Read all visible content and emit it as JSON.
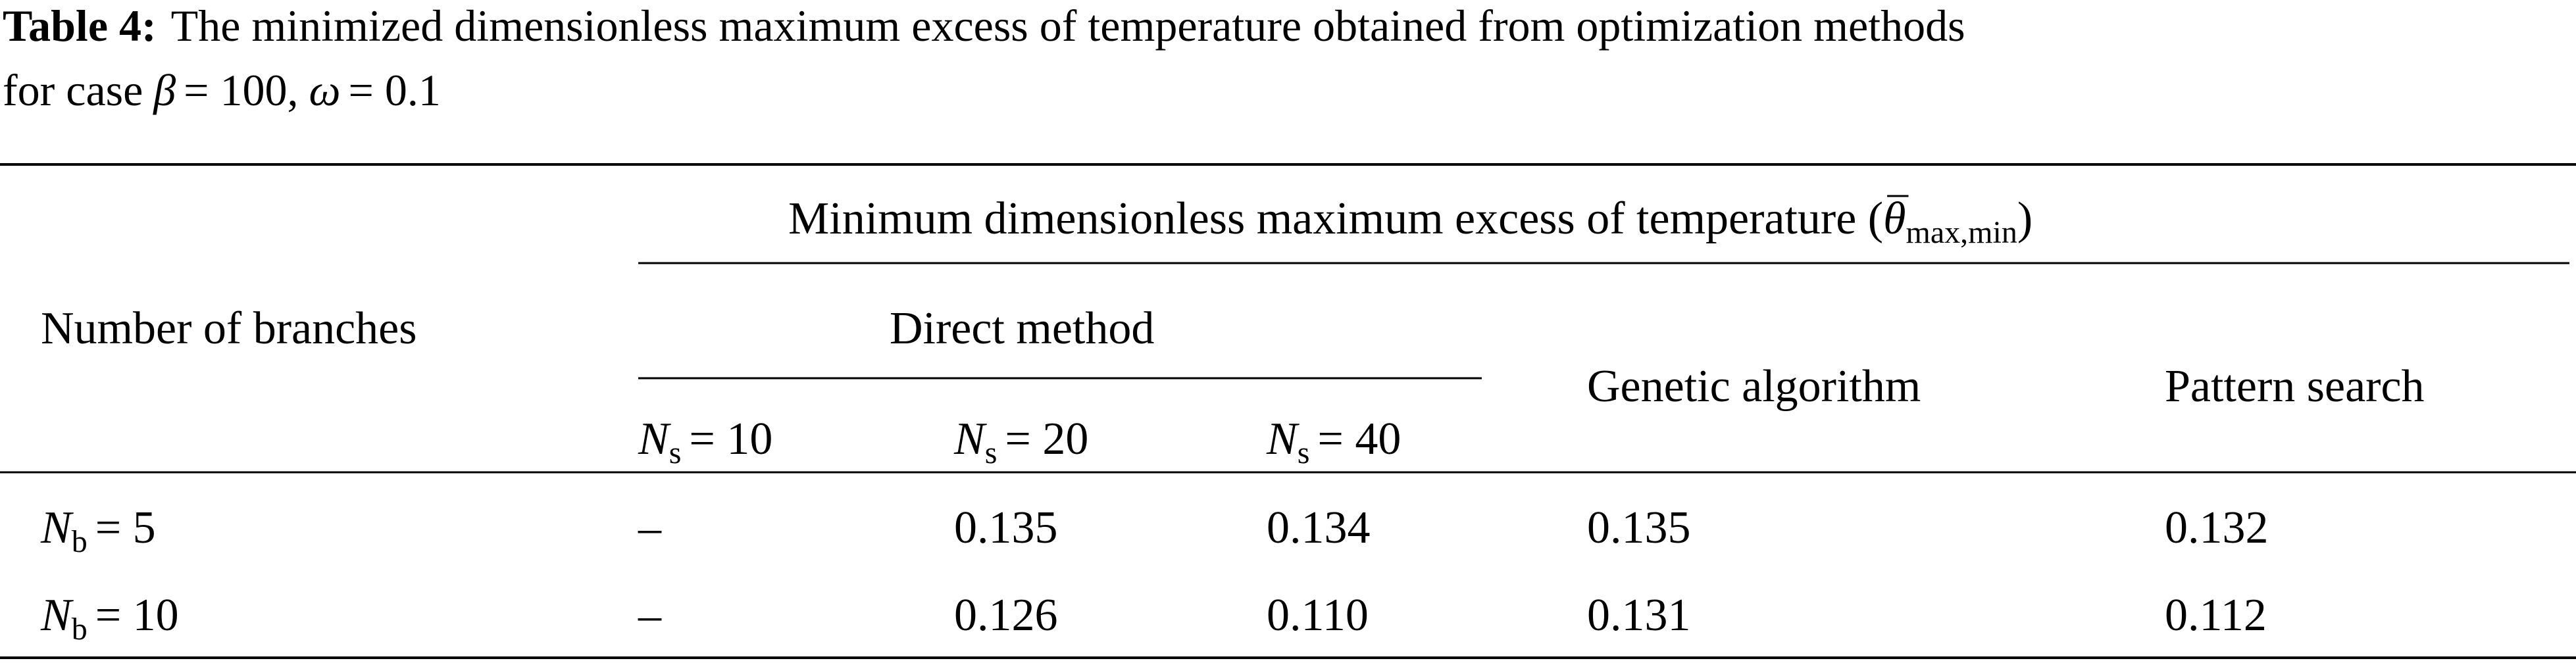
{
  "caption": {
    "label": "Table 4:",
    "line1": "The minimized dimensionless maximum excess of temperature obtained from optimization methods",
    "line2": "for case",
    "beta": {
      "symbol": "β",
      "value": "= 100,"
    },
    "omega": {
      "symbol": "ω",
      "value": "= 0.1"
    }
  },
  "table": {
    "header": {
      "span": {
        "text": "Minimum dimensionless maximum excess of temperature (",
        "symbol": "θ",
        "sub": "max,min",
        "close": ")"
      },
      "first": "Number of branches",
      "direct": "Direct method",
      "genetic": "Genetic algorithm",
      "pattern": "Pattern search",
      "ns": [
        {
          "symbol": "N",
          "sub": "s",
          "value": "= 10"
        },
        {
          "symbol": "N",
          "sub": "s",
          "value": "= 20"
        },
        {
          "symbol": "N",
          "sub": "s",
          "value": "= 40"
        }
      ]
    },
    "rows": [
      {
        "symbol": "N",
        "sub": "b",
        "value": "= 5",
        "cells": [
          "–",
          "0.135",
          "0.134",
          "0.135",
          "0.132"
        ]
      },
      {
        "symbol": "N",
        "sub": "b",
        "value": "= 10",
        "cells": [
          "–",
          "0.126",
          "0.110",
          "0.131",
          "0.112"
        ]
      }
    ]
  }
}
